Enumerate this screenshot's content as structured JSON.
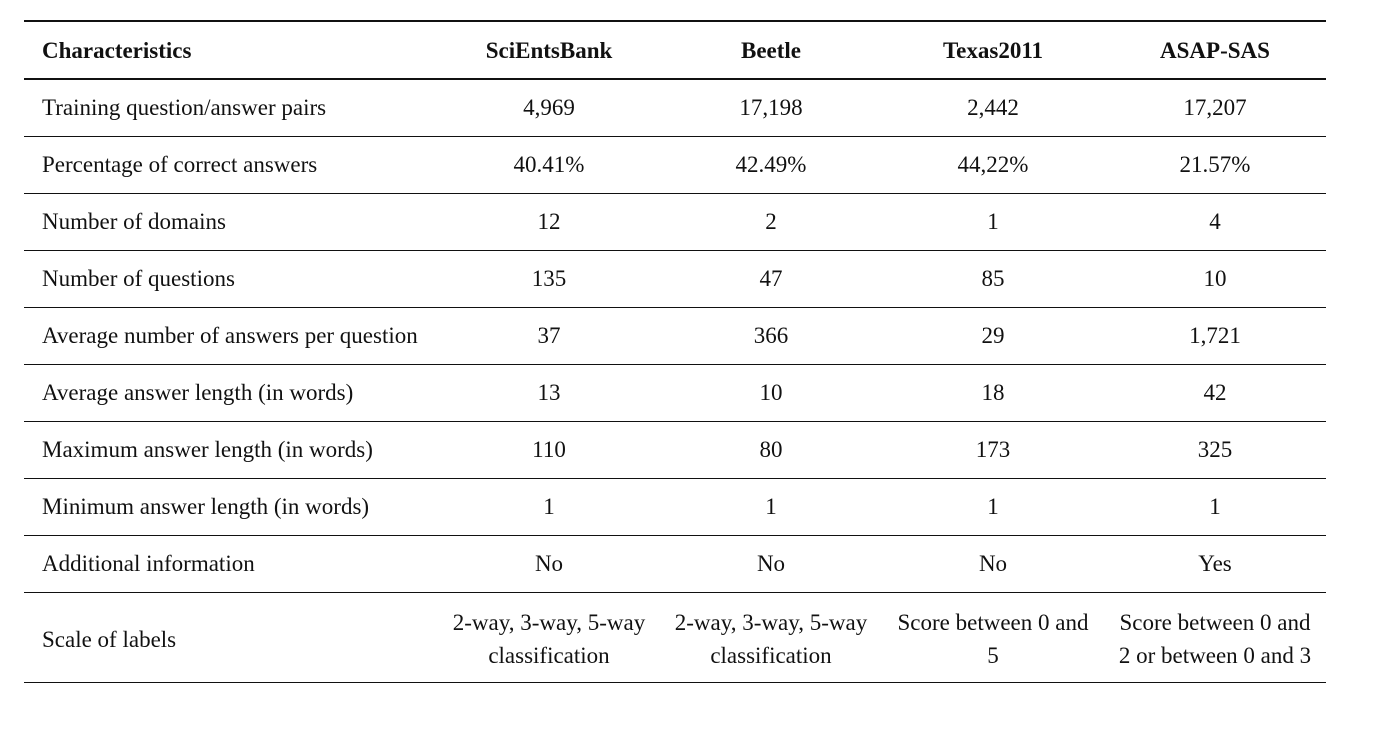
{
  "table": {
    "headers": [
      "Characteristics",
      "SciEntsBank",
      "Beetle",
      "Texas2011",
      "ASAP-SAS"
    ],
    "rows": [
      [
        "Training question/answer pairs",
        "4,969",
        "17,198",
        "2,442",
        "17,207"
      ],
      [
        "Percentage of correct answers",
        "40.41%",
        "42.49%",
        "44,22%",
        "21.57%"
      ],
      [
        "Number of domains",
        "12",
        "2",
        "1",
        "4"
      ],
      [
        "Number of questions",
        "135",
        "47",
        "85",
        "10"
      ],
      [
        "Average number of answers per question",
        "37",
        "366",
        "29",
        "1,721"
      ],
      [
        "Average answer length (in words)",
        "13",
        "10",
        "18",
        "42"
      ],
      [
        "Maximum answer length (in words)",
        "110",
        "80",
        "173",
        "325"
      ],
      [
        "Minimum answer length (in words)",
        "1",
        "1",
        "1",
        "1"
      ],
      [
        "Additional information",
        "No",
        "No",
        "No",
        "Yes"
      ],
      [
        "Scale of labels",
        "2-way, 3-way, 5-way classification",
        "2-way, 3-way, 5-way classification",
        "Score between 0 and 5",
        "Score between 0 and 2 or between 0 and 3"
      ]
    ]
  }
}
